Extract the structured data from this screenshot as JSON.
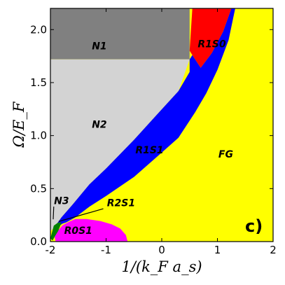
{
  "chart_data": {
    "type": "area",
    "title": "",
    "xlabel": "1/(k_F a_s)",
    "ylabel": "Ω/E_F",
    "xlim": [
      -2,
      2
    ],
    "ylim": [
      0,
      2.2
    ],
    "xticks": [
      -2,
      -1,
      0,
      1,
      2
    ],
    "xtick_labels": [
      "-2",
      "-1",
      "0",
      "1",
      "2"
    ],
    "yticks": [
      0.0,
      0.5,
      1.0,
      1.5,
      2.0
    ],
    "ytick_labels": [
      "0.0",
      "0.5",
      "1.0",
      "1.5",
      "2.0"
    ],
    "grid": false,
    "panel_label": "c)",
    "regions": [
      {
        "name": "FG",
        "color": "#ffff00",
        "points": [
          [
            -2,
            0
          ],
          [
            2,
            0
          ],
          [
            2,
            2.2
          ],
          [
            -2,
            2.2
          ]
        ]
      },
      {
        "name": "N1",
        "color": "#808080",
        "points": [
          [
            -2,
            2.2
          ],
          [
            0.5,
            2.2
          ],
          [
            0.5,
            1.72
          ],
          [
            -2,
            1.72
          ]
        ]
      },
      {
        "name": "N2",
        "color": "#d3d3d3",
        "points": [
          [
            -2,
            1.72
          ],
          [
            0.5,
            1.72
          ],
          [
            0.3,
            1.42
          ],
          [
            -0.1,
            1.19
          ],
          [
            -0.5,
            0.96
          ],
          [
            -1.0,
            0.69
          ],
          [
            -1.3,
            0.54
          ],
          [
            -1.6,
            0.35
          ],
          [
            -1.8,
            0.23
          ],
          [
            -1.95,
            0.12
          ],
          [
            -2,
            0.1
          ]
        ]
      },
      {
        "name": "R1S1",
        "color": "#0000ff",
        "points": [
          [
            -1.95,
            0.12
          ],
          [
            -1.8,
            0.23
          ],
          [
            -1.6,
            0.35
          ],
          [
            -1.3,
            0.54
          ],
          [
            -1.0,
            0.69
          ],
          [
            -0.5,
            0.96
          ],
          [
            -0.1,
            1.19
          ],
          [
            0.3,
            1.42
          ],
          [
            0.5,
            1.6
          ],
          [
            0.5,
            1.72
          ],
          [
            0.55,
            1.76
          ],
          [
            0.7,
            1.64
          ],
          [
            0.9,
            1.78
          ],
          [
            1.1,
            1.98
          ],
          [
            1.25,
            2.2
          ],
          [
            1.32,
            2.2
          ],
          [
            1.2,
            1.9
          ],
          [
            1.0,
            1.62
          ],
          [
            0.8,
            1.4
          ],
          [
            0.6,
            1.22
          ],
          [
            0.3,
            0.98
          ],
          [
            0.0,
            0.84
          ],
          [
            -0.5,
            0.61
          ],
          [
            -1.0,
            0.43
          ],
          [
            -1.3,
            0.33
          ],
          [
            -1.55,
            0.23
          ],
          [
            -1.72,
            0.18
          ],
          [
            -1.78,
            0.17
          ],
          [
            -1.92,
            0.12
          ]
        ]
      },
      {
        "name": "R1S0",
        "color": "#ff0000",
        "points": [
          [
            0.55,
            2.2
          ],
          [
            1.25,
            2.2
          ],
          [
            1.1,
            1.98
          ],
          [
            0.9,
            1.78
          ],
          [
            0.7,
            1.64
          ],
          [
            0.55,
            1.76
          ],
          [
            0.5,
            1.8
          ]
        ]
      },
      {
        "name": "R0S1",
        "color": "#ff00ff",
        "points": [
          [
            -1.9,
            0.0
          ],
          [
            -0.62,
            0.0
          ],
          [
            -0.65,
            0.06
          ],
          [
            -0.75,
            0.12
          ],
          [
            -0.9,
            0.16
          ],
          [
            -1.1,
            0.19
          ],
          [
            -1.35,
            0.21
          ],
          [
            -1.55,
            0.21
          ],
          [
            -1.68,
            0.18
          ],
          [
            -1.78,
            0.15
          ],
          [
            -1.86,
            0.1
          ],
          [
            -1.92,
            0.05
          ]
        ]
      },
      {
        "name": "N3",
        "color": "#008000",
        "points": [
          [
            -2.0,
            0.03
          ],
          [
            -1.94,
            0.15
          ],
          [
            -1.86,
            0.18
          ],
          [
            -1.8,
            0.18
          ],
          [
            -1.86,
            0.1
          ],
          [
            -1.92,
            0.05
          ],
          [
            -1.96,
            0.01
          ]
        ]
      }
    ],
    "labels": [
      {
        "text": "N1",
        "x": -1.12,
        "y": 1.84
      },
      {
        "text": "R1S0",
        "x": 0.9,
        "y": 1.86
      },
      {
        "text": "N2",
        "x": -1.12,
        "y": 1.1
      },
      {
        "text": "R1S1",
        "x": -0.22,
        "y": 0.86
      },
      {
        "text": "FG",
        "x": 1.15,
        "y": 0.82
      },
      {
        "text": "N3",
        "x": -1.8,
        "y": 0.38
      },
      {
        "text": "R2S1",
        "x": -0.73,
        "y": 0.36
      },
      {
        "text": "R0S1",
        "x": -1.5,
        "y": 0.1
      }
    ],
    "annotation_lines": [
      {
        "from": [
          -1.94,
          0.33
        ],
        "to": [
          -1.95,
          0.21
        ]
      },
      {
        "from": [
          -1.05,
          0.31
        ],
        "to": [
          -1.85,
          0.19
        ]
      }
    ]
  }
}
